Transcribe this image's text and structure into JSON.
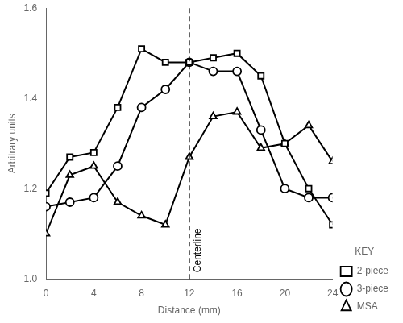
{
  "chart_data": {
    "type": "line",
    "x": [
      0,
      2,
      4,
      6,
      8,
      10,
      12,
      14,
      16,
      18,
      20,
      22,
      24
    ],
    "series": [
      {
        "name": "2-piece",
        "color": "black",
        "marker": "square",
        "values": [
          1.19,
          1.27,
          1.28,
          1.38,
          1.51,
          1.48,
          1.48,
          1.49,
          1.5,
          1.45,
          1.3,
          1.2,
          1.12
        ]
      },
      {
        "name": "3-piece",
        "color": "black",
        "marker": "circle",
        "values": [
          1.16,
          1.17,
          1.18,
          1.25,
          1.38,
          1.42,
          1.48,
          1.46,
          1.46,
          1.33,
          1.2,
          1.18,
          1.18
        ]
      },
      {
        "name": "MSA",
        "color": "black",
        "marker": "triangle",
        "values": [
          1.1,
          1.23,
          1.25,
          1.17,
          1.14,
          1.12,
          1.27,
          1.36,
          1.37,
          1.29,
          1.3,
          1.34,
          1.26
        ]
      }
    ],
    "xlabel": "Distance (mm)",
    "ylabel": "Arbitrary units",
    "xlim": [
      0,
      24
    ],
    "ylim": [
      1.0,
      1.6
    ],
    "xticks": [
      0,
      4,
      8,
      12,
      16,
      20,
      24
    ],
    "yticks": [
      {
        "value": 1.0,
        "label": "1.0"
      },
      1.2,
      1.4,
      1.6
    ],
    "grid": false,
    "legend": "lower right",
    "legend_title": "KEY",
    "annotations": [
      {
        "text": "Centerline",
        "x": 12,
        "line_style": "dashed"
      }
    ]
  }
}
